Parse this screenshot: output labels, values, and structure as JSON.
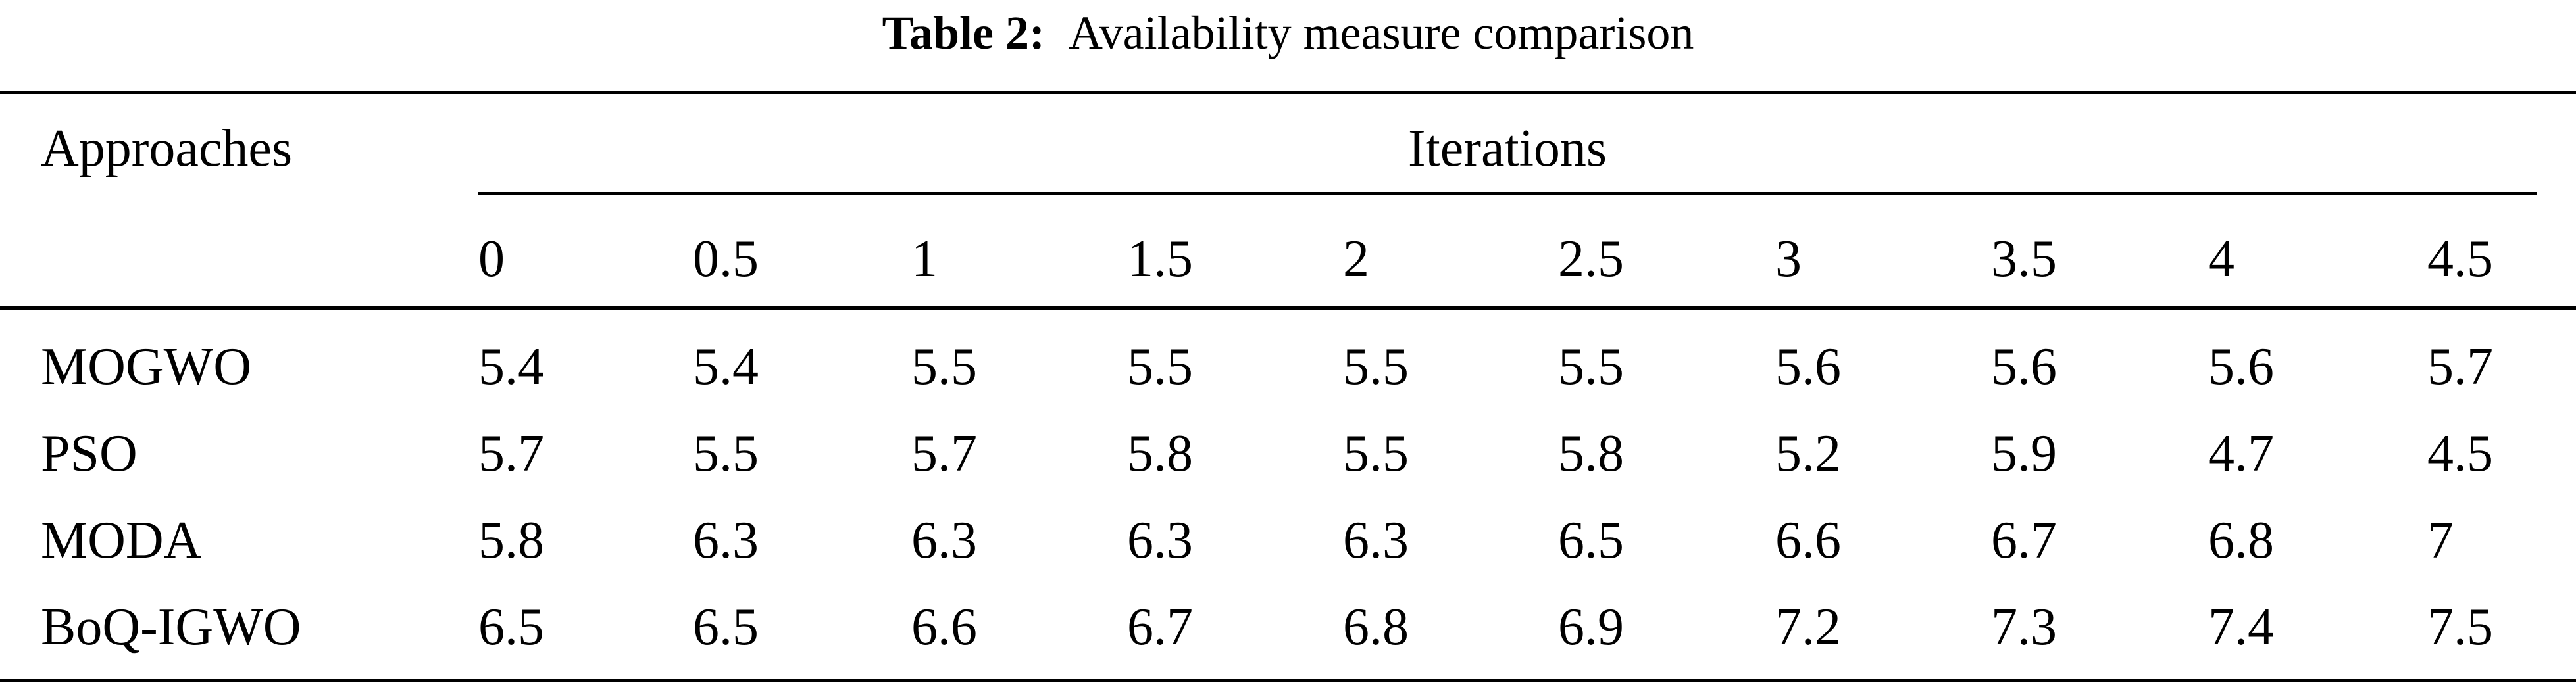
{
  "caption": {
    "label": "Table 2:",
    "title": "Availability measure comparison"
  },
  "table": {
    "row_header": "Approaches",
    "group_header": "Iterations",
    "columns": [
      "0",
      "0.5",
      "1",
      "1.5",
      "2",
      "2.5",
      "3",
      "3.5",
      "4",
      "4.5"
    ],
    "rows": [
      {
        "name": "MOGWO",
        "values": [
          "5.4",
          "5.4",
          "5.5",
          "5.5",
          "5.5",
          "5.5",
          "5.6",
          "5.6",
          "5.6",
          "5.7"
        ]
      },
      {
        "name": "PSO",
        "values": [
          "5.7",
          "5.5",
          "5.7",
          "5.8",
          "5.5",
          "5.8",
          "5.2",
          "5.9",
          "4.7",
          "4.5"
        ]
      },
      {
        "name": "MODA",
        "values": [
          "5.8",
          "6.3",
          "6.3",
          "6.3",
          "6.3",
          "6.5",
          "6.6",
          "6.7",
          "6.8",
          "7"
        ]
      },
      {
        "name": "BoQ-IGWO",
        "values": [
          "6.5",
          "6.5",
          "6.6",
          "6.7",
          "6.8",
          "6.9",
          "7.2",
          "7.3",
          "7.4",
          "7.5"
        ]
      }
    ]
  }
}
